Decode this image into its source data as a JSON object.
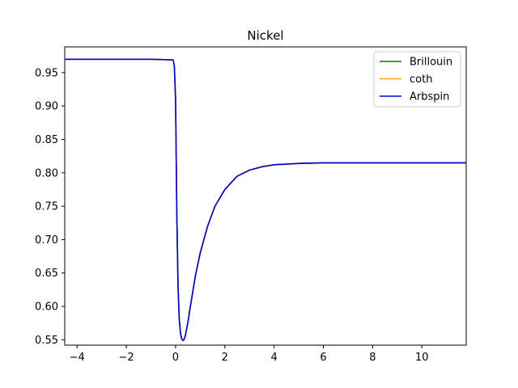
{
  "chart_data": {
    "type": "line",
    "title": "Nickel",
    "xlabel": "",
    "ylabel": "",
    "xlim": [
      -4.5,
      11.8
    ],
    "ylim": [
      0.542,
      0.9885
    ],
    "xticks": [
      -4,
      -2,
      0,
      2,
      4,
      6,
      8,
      10
    ],
    "xtick_labels": [
      "−4",
      "−2",
      "0",
      "2",
      "4",
      "6",
      "8",
      "10"
    ],
    "yticks": [
      0.55,
      0.6,
      0.65,
      0.7,
      0.75,
      0.8,
      0.85,
      0.9,
      0.95
    ],
    "ytick_labels": [
      "0.55",
      "0.60",
      "0.65",
      "0.70",
      "0.75",
      "0.80",
      "0.85",
      "0.90",
      "0.95"
    ],
    "grid": false,
    "legend_position": "top-right",
    "series": [
      {
        "name": "Brillouin",
        "color": "#008000",
        "x": [
          -4.5,
          -3,
          -2,
          -1,
          -0.1,
          -0.05,
          0,
          0.05,
          0.1,
          0.15,
          0.2,
          0.25,
          0.3,
          0.35,
          0.4,
          0.5,
          0.6,
          0.8,
          1.0,
          1.3,
          1.6,
          2.0,
          2.5,
          3.0,
          3.5,
          4.0,
          4.5,
          5.0,
          6.0,
          7.0,
          8.0,
          9.0,
          10.0,
          11.8
        ],
        "y": [
          0.97,
          0.97,
          0.97,
          0.97,
          0.969,
          0.96,
          0.91,
          0.74,
          0.63,
          0.58,
          0.56,
          0.551,
          0.549,
          0.551,
          0.557,
          0.576,
          0.6,
          0.645,
          0.68,
          0.72,
          0.75,
          0.775,
          0.795,
          0.804,
          0.809,
          0.812,
          0.813,
          0.814,
          0.815,
          0.815,
          0.815,
          0.815,
          0.815,
          0.815
        ]
      },
      {
        "name": "coth",
        "color": "#ffa500",
        "x": [
          -4.5,
          -3,
          -2,
          -1,
          -0.1,
          -0.05,
          0,
          0.05,
          0.1,
          0.15,
          0.2,
          0.25,
          0.3,
          0.35,
          0.4,
          0.5,
          0.6,
          0.8,
          1.0,
          1.3,
          1.6,
          2.0,
          2.5,
          3.0,
          3.5,
          4.0,
          4.5,
          5.0,
          6.0,
          7.0,
          8.0,
          9.0,
          10.0,
          11.8
        ],
        "y": [
          0.97,
          0.97,
          0.97,
          0.97,
          0.969,
          0.96,
          0.91,
          0.74,
          0.63,
          0.58,
          0.56,
          0.551,
          0.549,
          0.551,
          0.557,
          0.576,
          0.6,
          0.645,
          0.68,
          0.72,
          0.75,
          0.775,
          0.795,
          0.804,
          0.809,
          0.812,
          0.813,
          0.814,
          0.815,
          0.815,
          0.815,
          0.815,
          0.815,
          0.815
        ]
      },
      {
        "name": "Arbspin",
        "color": "#0000cd",
        "x": [
          -4.5,
          -3,
          -2,
          -1,
          -0.1,
          -0.05,
          0,
          0.05,
          0.1,
          0.15,
          0.2,
          0.25,
          0.3,
          0.35,
          0.4,
          0.5,
          0.6,
          0.8,
          1.0,
          1.3,
          1.6,
          2.0,
          2.5,
          3.0,
          3.5,
          4.0,
          4.5,
          5.0,
          6.0,
          7.0,
          8.0,
          9.0,
          10.0,
          11.8
        ],
        "y": [
          0.97,
          0.97,
          0.97,
          0.97,
          0.969,
          0.96,
          0.91,
          0.74,
          0.63,
          0.58,
          0.56,
          0.551,
          0.549,
          0.551,
          0.557,
          0.576,
          0.6,
          0.645,
          0.68,
          0.72,
          0.75,
          0.775,
          0.795,
          0.804,
          0.809,
          0.812,
          0.813,
          0.814,
          0.815,
          0.815,
          0.815,
          0.815,
          0.815,
          0.815
        ]
      }
    ]
  }
}
